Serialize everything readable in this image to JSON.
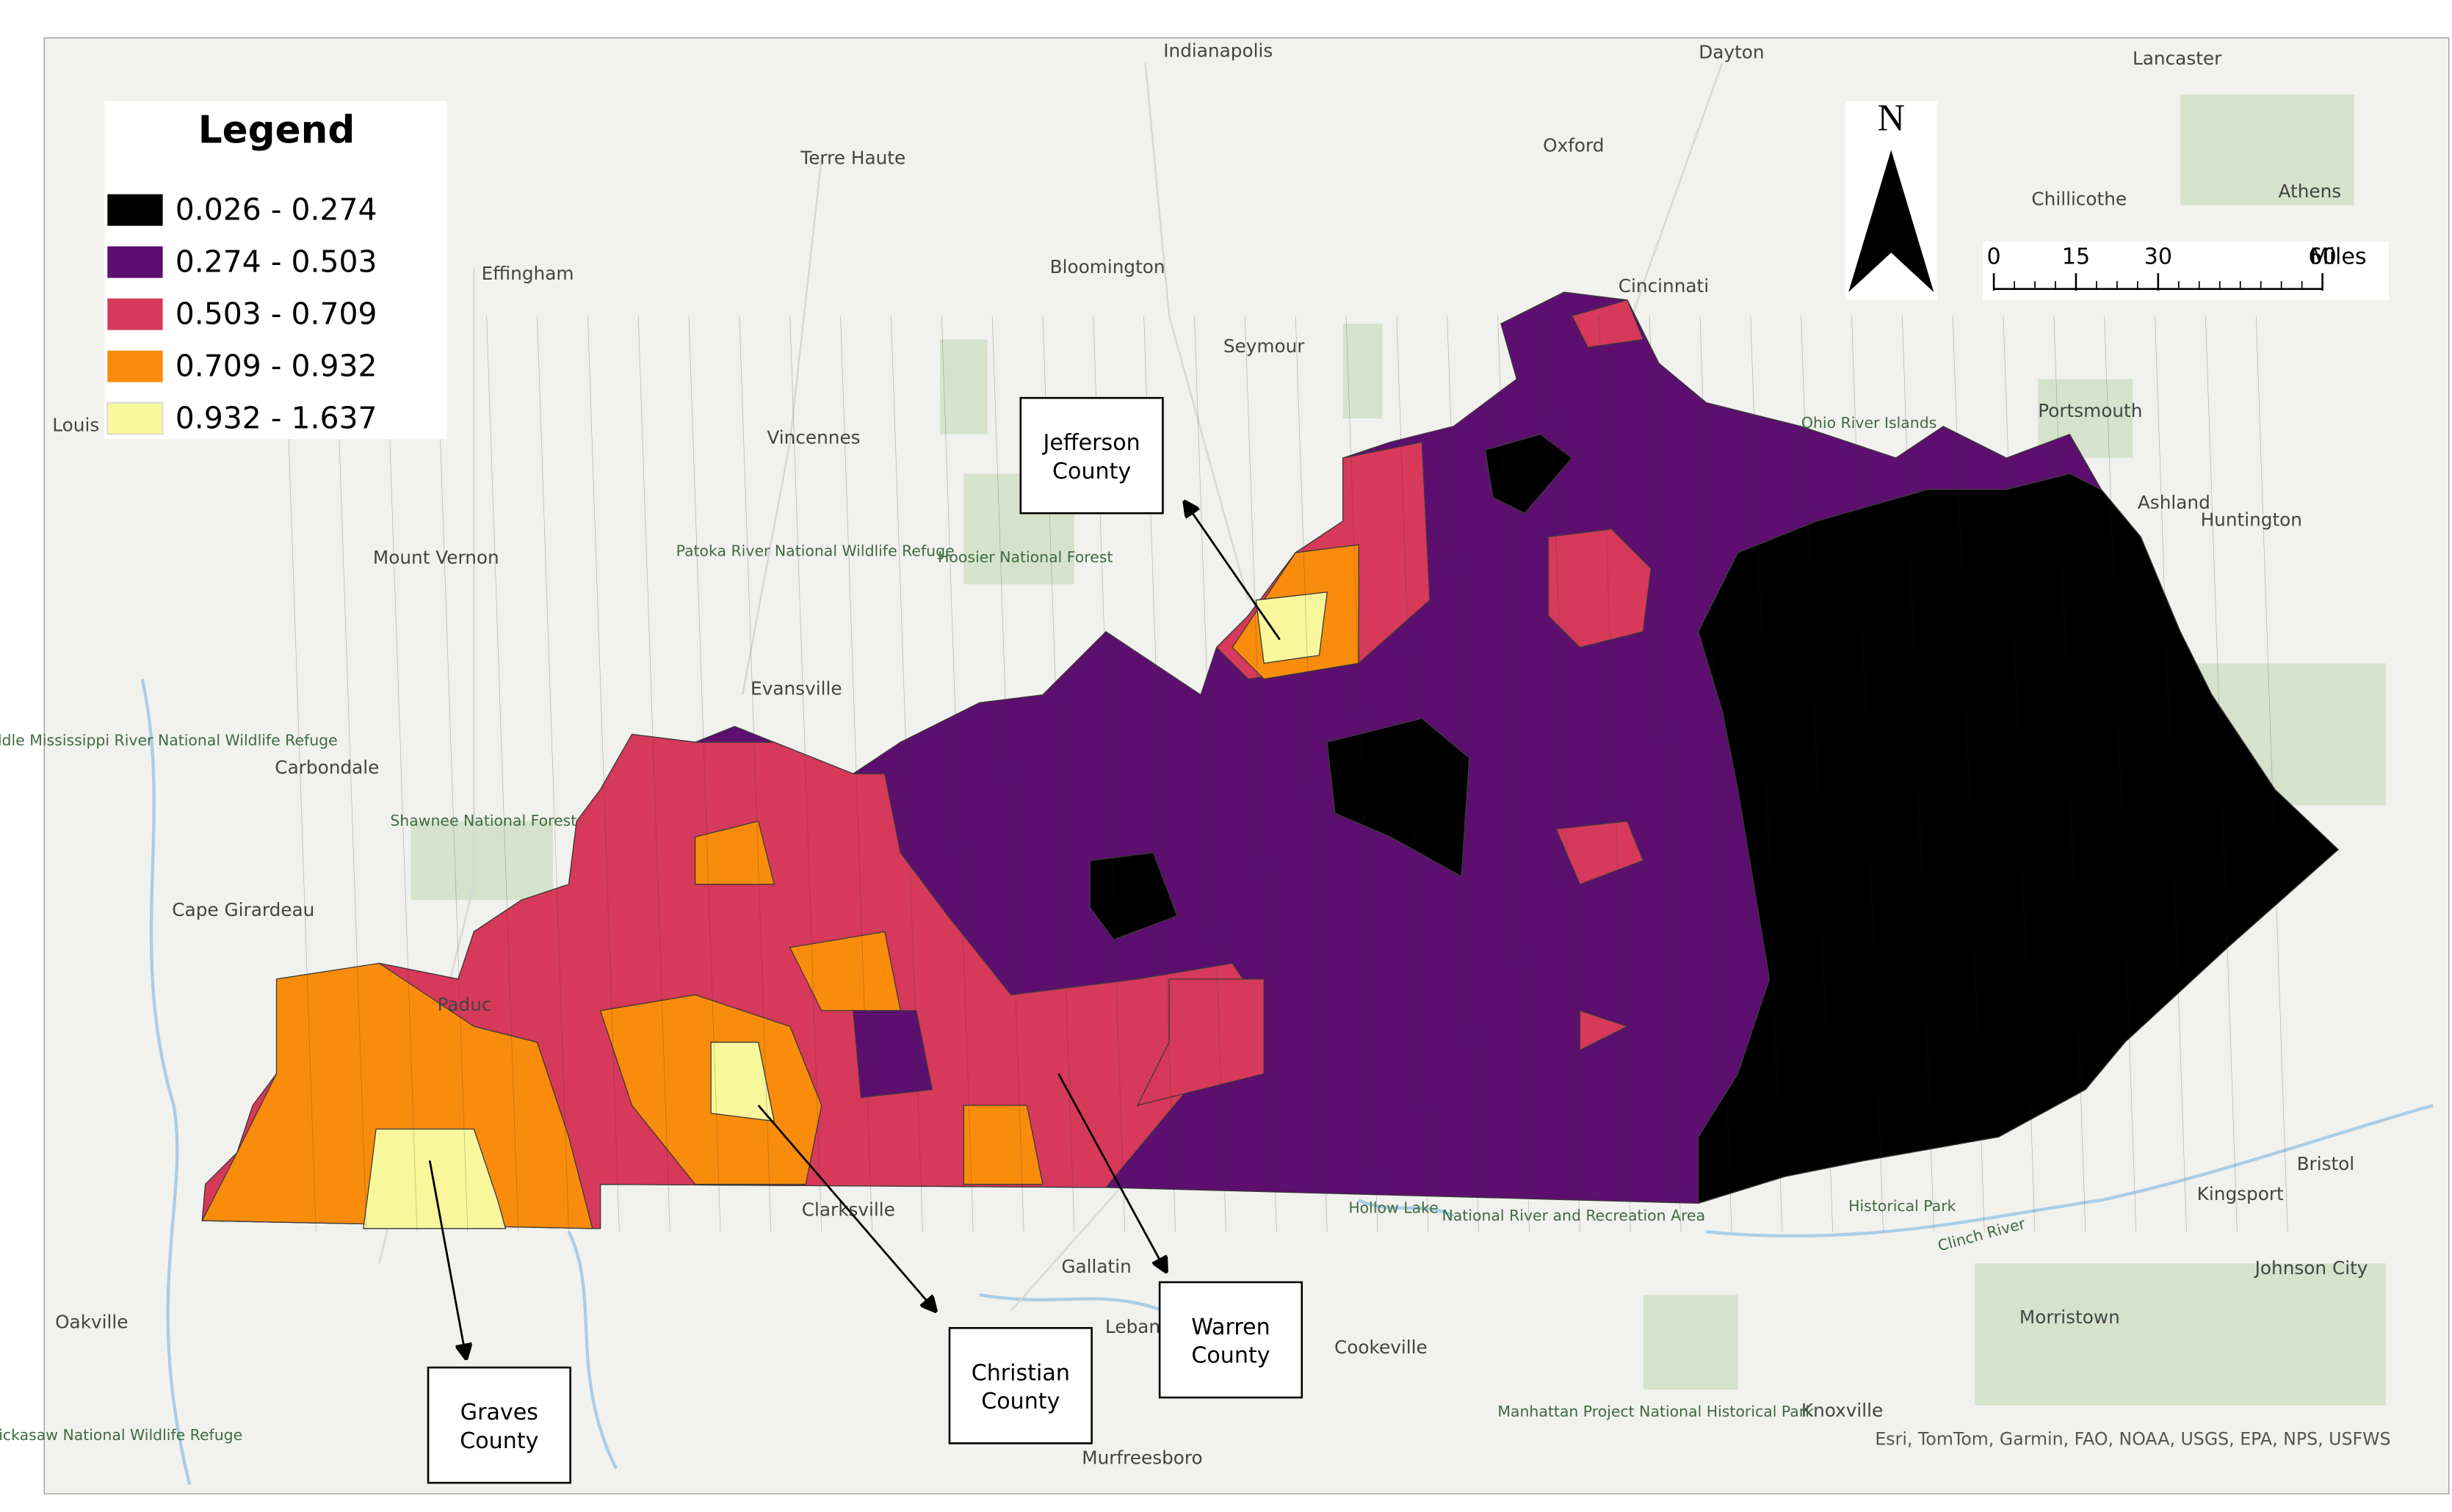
{
  "legend": {
    "title": "Legend",
    "items": [
      {
        "label": "0.026 - 0.274",
        "color": "#000000"
      },
      {
        "label": "0.274 - 0.503",
        "color": "#5c0f6e"
      },
      {
        "label": "0.503 - 0.709",
        "color": "#d6395a"
      },
      {
        "label": "0.709 - 0.932",
        "color": "#f98c0a"
      },
      {
        "label": "0.932 - 1.637",
        "color": "#f8f79c"
      }
    ]
  },
  "callouts": [
    {
      "lines": [
        "Jefferson",
        "County"
      ]
    },
    {
      "lines": [
        "Graves",
        "County"
      ]
    },
    {
      "lines": [
        "Christian",
        "County"
      ]
    },
    {
      "lines": [
        "Warren",
        "County"
      ]
    }
  ],
  "north_arrow": "N",
  "scale_bar": {
    "ticks": [
      0,
      15,
      30,
      60
    ],
    "unit": "Miles"
  },
  "places": [
    "Indianapolis",
    "Dayton",
    "Lancaster",
    "Terre Haute",
    "Oxford",
    "Chillicothe",
    "Athens",
    "Effingham",
    "Bloomington",
    "Cincinnati",
    "Seymour",
    "Louis",
    "Vincennes",
    "Portsmouth",
    "Ohio River Islands",
    "Ashland",
    "Huntington",
    "Mount Vernon",
    "Patoka River National Wildlife Refuge",
    "Hoosier National Forest",
    "Evansville",
    "Middle Mississippi River National Wildlife Refuge",
    "Carbondale",
    "Shawnee National Forest",
    "Cape Girardeau",
    "Paduc",
    "Clarksville",
    "Hollow Lake",
    "National River and Recreation Area",
    "Historical Park",
    "Kingsport",
    "Bristol",
    "Johnson City",
    "Gallatin",
    "Leban",
    "Cookeville",
    "Morristown",
    "Oakville",
    "Murfreesboro",
    "Knoxville",
    "Manhattan Project National Historical Park",
    "Chickasaw National Wildlife Refuge",
    "Clinch River"
  ],
  "attribution": "Esri, TomTom, Garmin, FAO, NOAA, USGS, EPA, NPS, USFWS"
}
